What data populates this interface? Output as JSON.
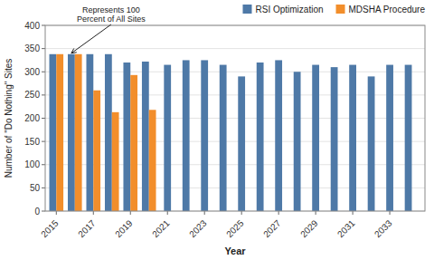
{
  "chart_data": {
    "type": "bar",
    "x": [
      2015,
      2016,
      2017,
      2018,
      2019,
      2020,
      2021,
      2022,
      2023,
      2024,
      2025,
      2026,
      2027,
      2028,
      2029,
      2030,
      2031,
      2032,
      2033,
      2034
    ],
    "series": [
      {
        "name": "RSI Optimization",
        "values": [
          338,
          338,
          338,
          338,
          320,
          322,
          315,
          325,
          325,
          315,
          290,
          320,
          325,
          300,
          315,
          310,
          315,
          290,
          315,
          315
        ]
      },
      {
        "name": "MDSHA Procedure",
        "values": [
          338,
          338,
          260,
          213,
          293,
          218,
          null,
          null,
          null,
          null,
          null,
          null,
          null,
          null,
          null,
          null,
          null,
          null,
          null,
          null
        ]
      }
    ],
    "xlabel": "Year",
    "ylabel": "Number of \"Do Nothing\" Sites",
    "xlim": [
      2014.4,
      2034.9
    ],
    "xticks": [
      2015,
      2017,
      2019,
      2021,
      2023,
      2025,
      2027,
      2029,
      2031,
      2033
    ],
    "ylim": [
      0,
      400
    ],
    "yticks": [
      0,
      50,
      100,
      150,
      200,
      250,
      300,
      350,
      400
    ],
    "grid": true,
    "legend": "upper right",
    "annotations": [
      {
        "text": "Represents 100\nPercent of All Sites",
        "x": 2016,
        "y": 338
      }
    ]
  }
}
